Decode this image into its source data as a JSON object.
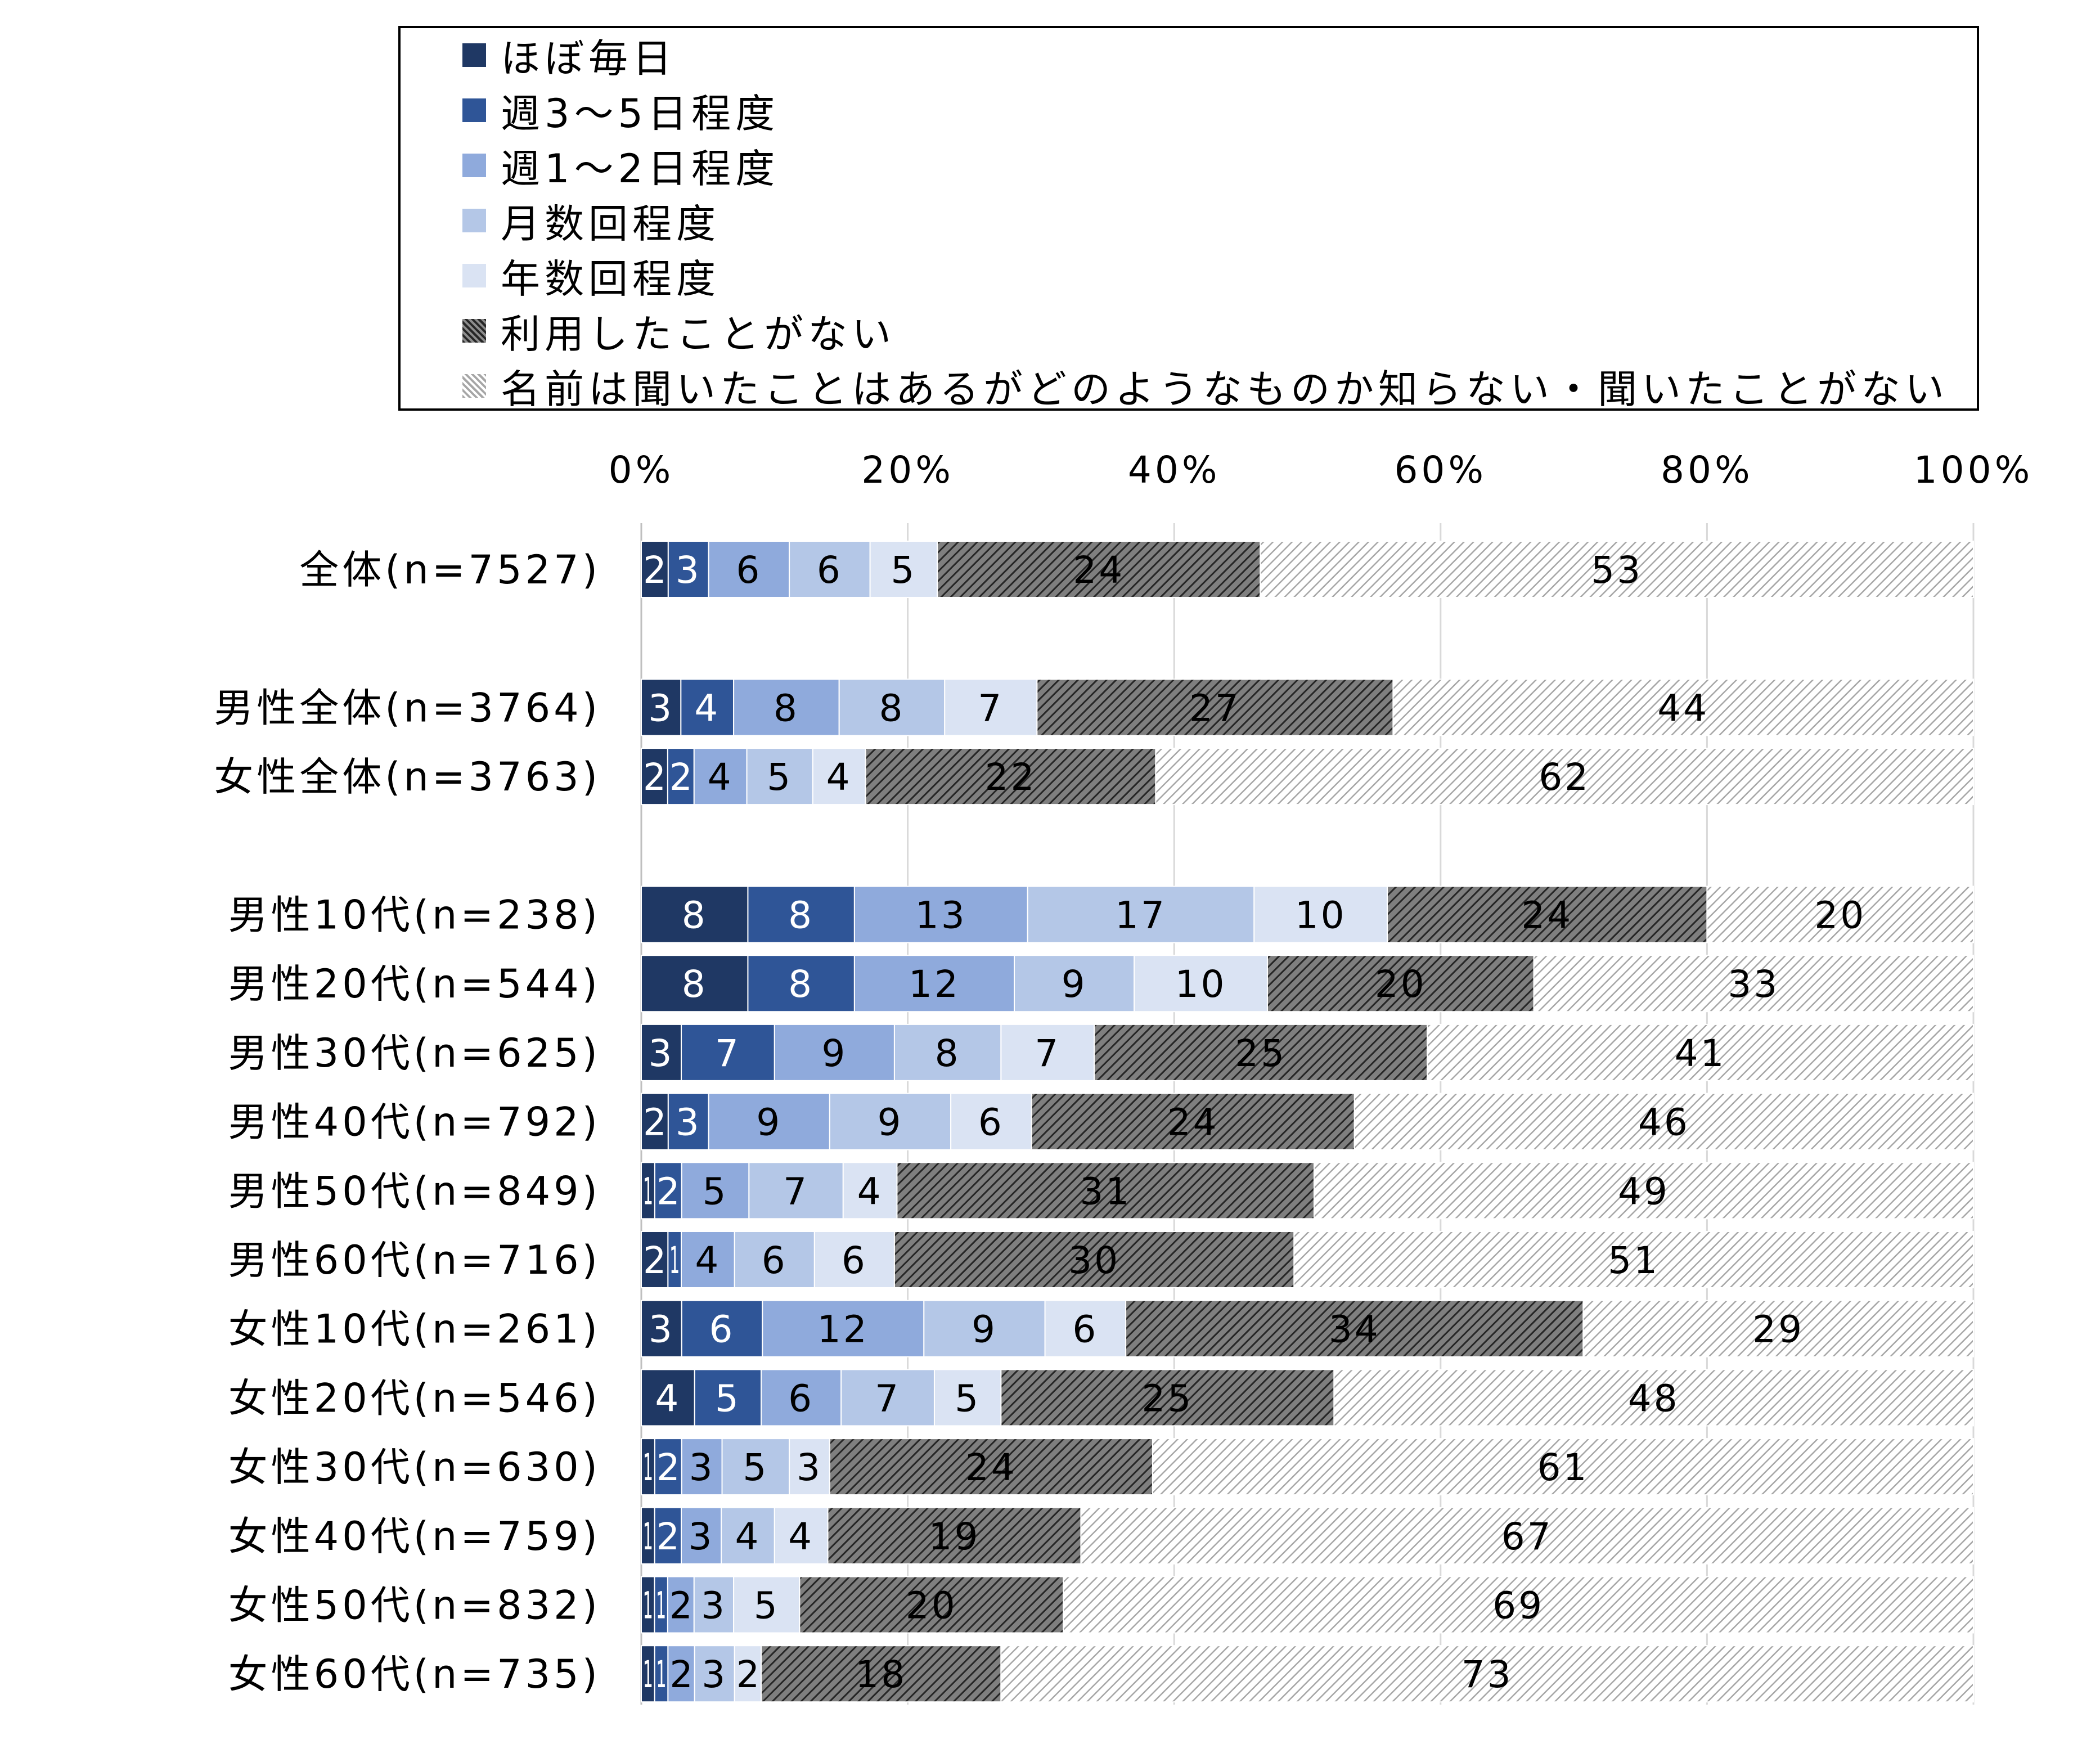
{
  "legend": {
    "items": [
      {
        "label": "ほぼ毎日",
        "color": "#1f3864",
        "pattern": "solid"
      },
      {
        "label": "週3～5日程度",
        "color": "#2f5597",
        "pattern": "solid"
      },
      {
        "label": "週1～2日程度",
        "color": "#8faadc",
        "pattern": "solid"
      },
      {
        "label": "月数回程度",
        "color": "#b4c7e7",
        "pattern": "solid"
      },
      {
        "label": "年数回程度",
        "color": "#dae3f3",
        "pattern": "solid"
      },
      {
        "label": "利用したことがない",
        "color": "#595959",
        "pattern": "hatch-dark"
      },
      {
        "label": "名前は聞いたことはあるがどのようなものか知らない・聞いたことがない",
        "color": "#bfbfbf",
        "pattern": "hatch-light"
      }
    ]
  },
  "chart_data": {
    "type": "bar",
    "orientation": "horizontal",
    "stacked": "percent",
    "xlim": [
      0,
      100
    ],
    "xticks": [
      "0%",
      "20%",
      "40%",
      "60%",
      "80%",
      "100%"
    ],
    "xtick_values": [
      0,
      20,
      40,
      60,
      80,
      100
    ],
    "grid": true,
    "legend_position": "top",
    "categories": [
      "全体(n=7527)",
      "男性全体(n=3764)",
      "女性全体(n=3763)",
      "男性10代(n=238)",
      "男性20代(n=544)",
      "男性30代(n=625)",
      "男性40代(n=792)",
      "男性50代(n=849)",
      "男性60代(n=716)",
      "女性10代(n=261)",
      "女性20代(n=546)",
      "女性30代(n=630)",
      "女性40代(n=759)",
      "女性50代(n=832)",
      "女性60代(n=735)"
    ],
    "groups": [
      [
        0
      ],
      [
        1,
        2
      ],
      [
        3,
        4,
        5,
        6,
        7,
        8,
        9,
        10,
        11,
        12,
        13,
        14
      ]
    ],
    "series": [
      {
        "name": "ほぼ毎日",
        "values": [
          2,
          3,
          2,
          8,
          8,
          3,
          2,
          1,
          2,
          3,
          4,
          1,
          1,
          1,
          1
        ]
      },
      {
        "name": "週3～5日程度",
        "values": [
          3,
          4,
          2,
          8,
          8,
          7,
          3,
          2,
          1,
          6,
          5,
          2,
          2,
          1,
          1
        ]
      },
      {
        "name": "週1～2日程度",
        "values": [
          6,
          8,
          4,
          13,
          12,
          9,
          9,
          5,
          4,
          12,
          6,
          3,
          3,
          2,
          2
        ]
      },
      {
        "name": "月数回程度",
        "values": [
          6,
          8,
          5,
          17,
          9,
          8,
          9,
          7,
          6,
          9,
          7,
          5,
          4,
          3,
          3
        ]
      },
      {
        "name": "年数回程度",
        "values": [
          5,
          7,
          4,
          10,
          10,
          7,
          6,
          4,
          6,
          6,
          5,
          3,
          4,
          5,
          2
        ]
      },
      {
        "name": "利用したことがない",
        "values": [
          24,
          27,
          22,
          24,
          20,
          25,
          24,
          31,
          30,
          34,
          25,
          24,
          19,
          20,
          18
        ]
      },
      {
        "name": "名前は聞いたことはあるがどのようなものか知らない・聞いたことがない",
        "values": [
          53,
          44,
          62,
          20,
          33,
          41,
          46,
          49,
          51,
          29,
          48,
          61,
          67,
          69,
          73
        ]
      }
    ]
  }
}
